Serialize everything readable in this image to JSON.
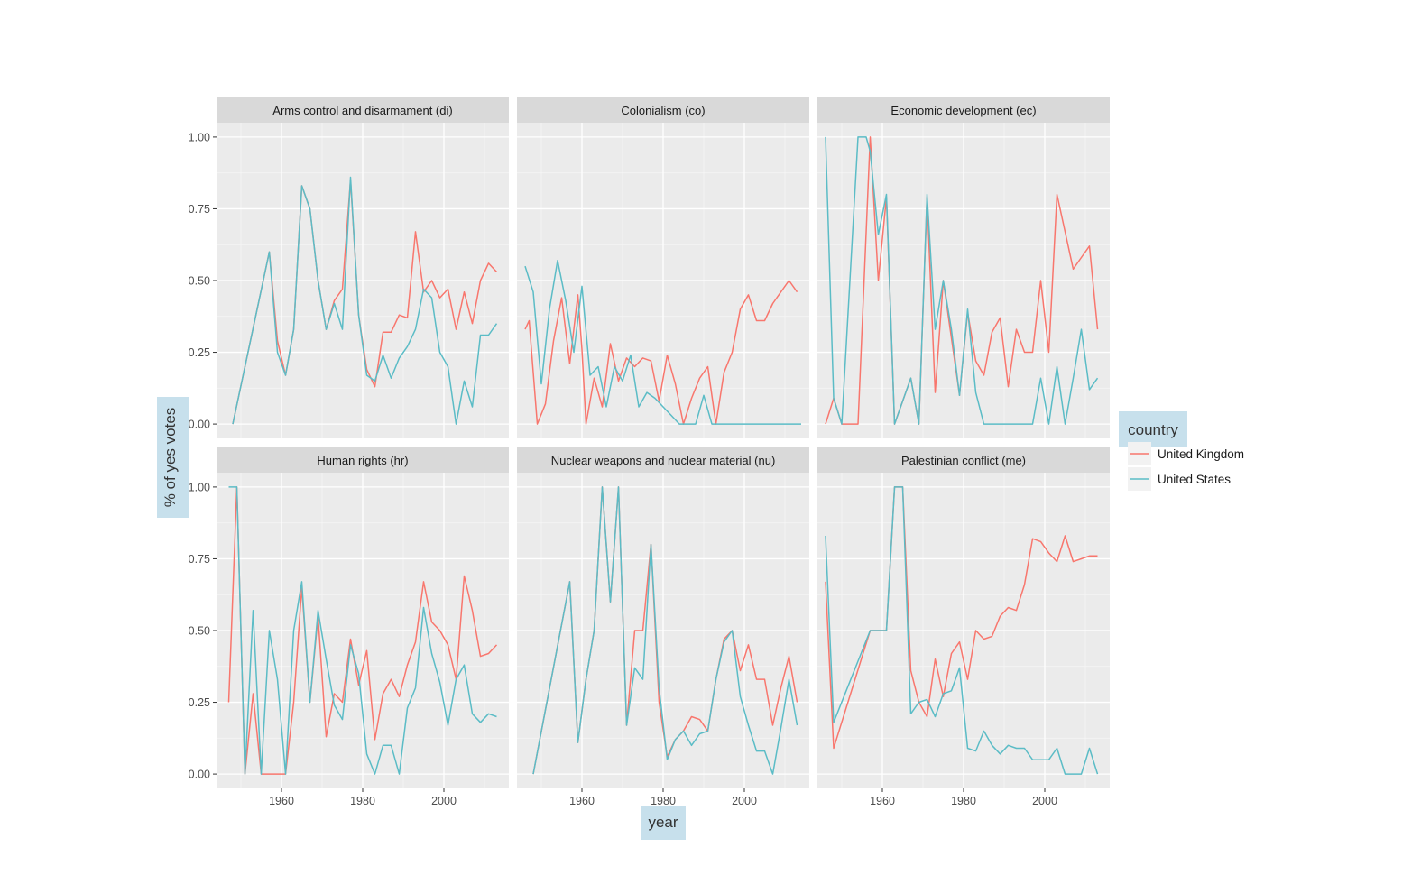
{
  "chart_data": {
    "type": "line",
    "xlabel": "year",
    "ylabel": "% of yes votes",
    "xlim": [
      1944,
      2016
    ],
    "ylim": [
      -0.05,
      1.05
    ],
    "x_ticks": [
      1960,
      1980,
      2000
    ],
    "x_tick_labels": [
      "1960",
      "1980",
      "2000"
    ],
    "y_ticks": [
      0,
      0.25,
      0.5,
      0.75,
      1.0
    ],
    "y_tick_labels": [
      "0.00",
      "0.25",
      "0.50",
      "0.75",
      "1.00"
    ],
    "grid": true,
    "legend": {
      "title": "country",
      "position": "right",
      "entries": [
        {
          "name": "United Kingdom",
          "color": "#F8766D"
        },
        {
          "name": "United States",
          "color": "#5BBCC6"
        }
      ]
    },
    "colors": {
      "United Kingdom": "#F8766D",
      "United States": "#5BBCC6"
    },
    "panels": [
      {
        "title": "Arms control and disarmament (di)",
        "series": [
          {
            "name": "United Kingdom",
            "x": [
              1948,
              1957,
              1959,
              1961,
              1963,
              1965,
              1967,
              1969,
              1971,
              1973,
              1975,
              1977,
              1979,
              1981,
              1983,
              1985,
              1987,
              1989,
              1991,
              1993,
              1995,
              1997,
              1999,
              2001,
              2003,
              2005,
              2007,
              2009,
              2011,
              2013
            ],
            "y": [
              0.0,
              0.6,
              0.29,
              0.17,
              0.33,
              0.83,
              0.75,
              0.5,
              0.33,
              0.43,
              0.47,
              0.85,
              0.38,
              0.19,
              0.13,
              0.32,
              0.32,
              0.38,
              0.37,
              0.67,
              0.46,
              0.5,
              0.44,
              0.47,
              0.33,
              0.46,
              0.35,
              0.5,
              0.56,
              0.53
            ]
          },
          {
            "name": "United States",
            "x": [
              1948,
              1957,
              1959,
              1961,
              1963,
              1965,
              1967,
              1969,
              1971,
              1973,
              1975,
              1977,
              1979,
              1981,
              1983,
              1985,
              1987,
              1989,
              1991,
              1993,
              1995,
              1997,
              1999,
              2001,
              2003,
              2005,
              2007,
              2009,
              2011,
              2013
            ],
            "y": [
              0.0,
              0.6,
              0.25,
              0.17,
              0.33,
              0.83,
              0.75,
              0.5,
              0.33,
              0.42,
              0.33,
              0.86,
              0.38,
              0.17,
              0.15,
              0.24,
              0.16,
              0.23,
              0.27,
              0.33,
              0.47,
              0.44,
              0.25,
              0.2,
              0.0,
              0.15,
              0.06,
              0.31,
              0.31,
              0.35
            ]
          }
        ]
      },
      {
        "title": "Colonialism (co)",
        "series": [
          {
            "name": "United Kingdom",
            "x": [
              1946,
              1947,
              1949,
              1951,
              1953,
              1955,
              1957,
              1959,
              1960,
              1961,
              1963,
              1965,
              1967,
              1969,
              1971,
              1973,
              1975,
              1977,
              1979,
              1981,
              1983,
              1985,
              1987,
              1989,
              1991,
              1993,
              1995,
              1997,
              1999,
              2001,
              2003,
              2005,
              2007,
              2009,
              2011,
              2013
            ],
            "y": [
              0.33,
              0.36,
              0.0,
              0.07,
              0.29,
              0.44,
              0.21,
              0.45,
              0.26,
              0.0,
              0.16,
              0.06,
              0.28,
              0.15,
              0.23,
              0.2,
              0.23,
              0.22,
              0.08,
              0.24,
              0.14,
              0.0,
              0.09,
              0.16,
              0.2,
              0.0,
              0.18,
              0.25,
              0.4,
              0.45,
              0.36,
              0.36,
              0.42,
              0.46,
              0.5,
              0.46
            ]
          },
          {
            "name": "United States",
            "x": [
              1946,
              1948,
              1950,
              1952,
              1954,
              1956,
              1958,
              1960,
              1962,
              1964,
              1966,
              1968,
              1970,
              1972,
              1974,
              1976,
              1978,
              1980,
              1982,
              1984,
              1986,
              1988,
              1990,
              1992,
              1994,
              1996,
              1998,
              2000,
              2002,
              2004,
              2006,
              2008,
              2010,
              2012,
              2014
            ],
            "y": [
              0.55,
              0.46,
              0.14,
              0.4,
              0.57,
              0.43,
              0.25,
              0.48,
              0.17,
              0.2,
              0.06,
              0.2,
              0.15,
              0.24,
              0.06,
              0.11,
              0.09,
              0.06,
              0.03,
              0.0,
              0.0,
              0.0,
              0.1,
              0.0,
              0.0,
              0.0,
              0.0,
              0.0,
              0.0,
              0.0,
              0.0,
              0.0,
              0.0,
              0.0,
              0.0
            ]
          }
        ]
      },
      {
        "title": "Economic development (ec)",
        "series": [
          {
            "name": "United Kingdom",
            "x": [
              1946,
              1948,
              1950,
              1952,
              1954,
              1957,
              1959,
              1961,
              1963,
              1965,
              1967,
              1969,
              1971,
              1973,
              1975,
              1977,
              1979,
              1981,
              1983,
              1985,
              1987,
              1989,
              1991,
              1993,
              1995,
              1997,
              1999,
              2001,
              2003,
              2005,
              2007,
              2009,
              2011,
              2013
            ],
            "y": [
              0.0,
              0.09,
              0.0,
              0.0,
              0.0,
              1.0,
              0.5,
              0.79,
              0.0,
              0.08,
              0.16,
              0.0,
              0.79,
              0.11,
              0.5,
              0.3,
              0.1,
              0.39,
              0.22,
              0.17,
              0.32,
              0.37,
              0.13,
              0.33,
              0.25,
              0.25,
              0.5,
              0.25,
              0.8,
              0.67,
              0.54,
              0.58,
              0.62,
              0.33
            ]
          },
          {
            "name": "United States",
            "x": [
              1946,
              1948,
              1950,
              1952,
              1954,
              1956,
              1957,
              1959,
              1961,
              1963,
              1965,
              1967,
              1969,
              1971,
              1973,
              1975,
              1977,
              1979,
              1981,
              1983,
              1985,
              1987,
              1989,
              1991,
              1993,
              1995,
              1997,
              1999,
              2001,
              2003,
              2005,
              2007,
              2009,
              2011,
              2013
            ],
            "y": [
              1.0,
              0.09,
              0.0,
              0.5,
              1.0,
              1.0,
              0.95,
              0.66,
              0.8,
              0.0,
              0.08,
              0.16,
              0.0,
              0.8,
              0.33,
              0.5,
              0.33,
              0.1,
              0.4,
              0.11,
              0.0,
              0.0,
              0.0,
              0.0,
              0.0,
              0.0,
              0.0,
              0.16,
              0.0,
              0.2,
              0.0,
              0.16,
              0.33,
              0.12,
              0.16
            ]
          }
        ]
      },
      {
        "title": "Human rights (hr)",
        "series": [
          {
            "name": "United Kingdom",
            "x": [
              1947,
              1949,
              1951,
              1953,
              1955,
              1957,
              1959,
              1961,
              1963,
              1965,
              1967,
              1969,
              1971,
              1973,
              1975,
              1977,
              1979,
              1981,
              1983,
              1985,
              1987,
              1989,
              1991,
              1993,
              1995,
              1997,
              1999,
              2001,
              2003,
              2005,
              2007,
              2009,
              2011,
              2013
            ],
            "y": [
              0.25,
              1.0,
              0.0,
              0.28,
              0.0,
              0.0,
              0.0,
              0.0,
              0.25,
              0.65,
              0.25,
              0.55,
              0.13,
              0.28,
              0.25,
              0.47,
              0.31,
              0.43,
              0.12,
              0.28,
              0.33,
              0.27,
              0.38,
              0.46,
              0.67,
              0.53,
              0.5,
              0.45,
              0.33,
              0.69,
              0.57,
              0.41,
              0.42,
              0.45
            ]
          },
          {
            "name": "United States",
            "x": [
              1947,
              1949,
              1951,
              1953,
              1955,
              1957,
              1959,
              1961,
              1963,
              1965,
              1967,
              1969,
              1971,
              1973,
              1975,
              1977,
              1979,
              1981,
              1983,
              1985,
              1987,
              1989,
              1991,
              1993,
              1995,
              1997,
              1999,
              2001,
              2003,
              2005,
              2007,
              2009,
              2011,
              2013
            ],
            "y": [
              1.0,
              1.0,
              0.0,
              0.57,
              0.0,
              0.5,
              0.33,
              0.0,
              0.5,
              0.67,
              0.25,
              0.57,
              0.4,
              0.24,
              0.19,
              0.45,
              0.35,
              0.07,
              0.0,
              0.1,
              0.1,
              0.0,
              0.23,
              0.3,
              0.58,
              0.42,
              0.32,
              0.17,
              0.33,
              0.38,
              0.21,
              0.18,
              0.21,
              0.2
            ]
          }
        ]
      },
      {
        "title": "Nuclear weapons and nuclear material (nu)",
        "series": [
          {
            "name": "United Kingdom",
            "x": [
              1948,
              1957,
              1959,
              1961,
              1963,
              1965,
              1967,
              1969,
              1971,
              1973,
              1975,
              1977,
              1979,
              1981,
              1983,
              1985,
              1987,
              1989,
              1991,
              1993,
              1995,
              1997,
              1999,
              2001,
              2003,
              2005,
              2007,
              2009,
              2011,
              2013
            ],
            "y": [
              0.0,
              0.67,
              0.11,
              0.33,
              0.5,
              1.0,
              0.6,
              1.0,
              0.17,
              0.5,
              0.5,
              0.8,
              0.25,
              0.06,
              0.12,
              0.15,
              0.2,
              0.19,
              0.15,
              0.33,
              0.47,
              0.5,
              0.36,
              0.45,
              0.33,
              0.33,
              0.17,
              0.3,
              0.41,
              0.25
            ]
          },
          {
            "name": "United States",
            "x": [
              1948,
              1957,
              1959,
              1961,
              1963,
              1965,
              1967,
              1969,
              1971,
              1973,
              1975,
              1977,
              1979,
              1981,
              1983,
              1985,
              1987,
              1989,
              1991,
              1993,
              1995,
              1997,
              1999,
              2001,
              2003,
              2005,
              2007,
              2009,
              2011,
              2013
            ],
            "y": [
              0.0,
              0.67,
              0.11,
              0.33,
              0.5,
              1.0,
              0.6,
              1.0,
              0.17,
              0.37,
              0.33,
              0.8,
              0.3,
              0.05,
              0.12,
              0.15,
              0.1,
              0.14,
              0.15,
              0.33,
              0.46,
              0.5,
              0.27,
              0.17,
              0.08,
              0.08,
              0.0,
              0.16,
              0.33,
              0.17
            ]
          }
        ]
      },
      {
        "title": "Palestinian conflict (me)",
        "series": [
          {
            "name": "United Kingdom",
            "x": [
              1946,
              1948,
              1957,
              1959,
              1961,
              1963,
              1965,
              1967,
              1969,
              1971,
              1973,
              1975,
              1977,
              1979,
              1981,
              1983,
              1985,
              1987,
              1989,
              1991,
              1993,
              1995,
              1997,
              1999,
              2001,
              2003,
              2005,
              2007,
              2009,
              2011,
              2013
            ],
            "y": [
              0.67,
              0.09,
              0.5,
              0.5,
              0.5,
              1.0,
              1.0,
              0.36,
              0.25,
              0.2,
              0.4,
              0.27,
              0.42,
              0.46,
              0.33,
              0.5,
              0.47,
              0.48,
              0.55,
              0.58,
              0.57,
              0.66,
              0.82,
              0.81,
              0.77,
              0.74,
              0.83,
              0.74,
              0.75,
              0.76,
              0.76
            ]
          },
          {
            "name": "United States",
            "x": [
              1946,
              1948,
              1957,
              1959,
              1961,
              1963,
              1965,
              1967,
              1969,
              1971,
              1973,
              1975,
              1977,
              1979,
              1981,
              1983,
              1985,
              1987,
              1989,
              1991,
              1993,
              1995,
              1997,
              1999,
              2001,
              2003,
              2005,
              2007,
              2009,
              2011,
              2013
            ],
            "y": [
              0.83,
              0.18,
              0.5,
              0.5,
              0.5,
              1.0,
              1.0,
              0.21,
              0.25,
              0.26,
              0.2,
              0.28,
              0.29,
              0.37,
              0.09,
              0.08,
              0.15,
              0.1,
              0.07,
              0.1,
              0.09,
              0.09,
              0.05,
              0.05,
              0.05,
              0.09,
              0.0,
              0.0,
              0.0,
              0.09,
              0.0
            ]
          }
        ]
      }
    ]
  }
}
